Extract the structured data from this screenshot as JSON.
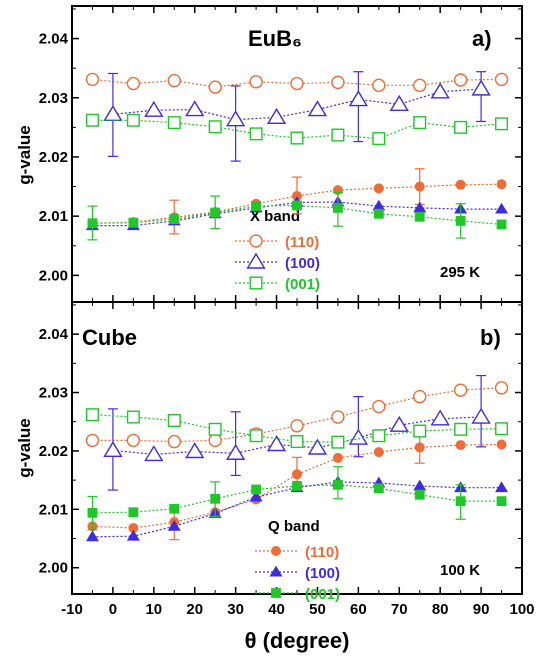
{
  "colors": {
    "s110": "#ef6c37",
    "s100": "#3f2be0",
    "s001": "#22c52a"
  },
  "xlabel": "θ (degree)",
  "ylabel": "g-value",
  "chart_data": [
    {
      "type": "line",
      "panel": "a",
      "title": "EuB₆",
      "letter": "a)",
      "temperature": "295 K",
      "legend_title": "X band",
      "marker": "open",
      "x_ticks": [
        "-10",
        "0",
        "10",
        "20",
        "30",
        "40",
        "50",
        "60",
        "70",
        "80",
        "90",
        "100"
      ],
      "y_ticks": [
        "2.00",
        "2.01",
        "2.02",
        "2.03",
        "2.04"
      ],
      "xlim": [
        -10,
        100
      ],
      "ylim": [
        1.9955,
        2.0455
      ],
      "series": [
        {
          "name": "(110)",
          "key": "s110",
          "points": [
            [
              -5,
              2.0331
            ],
            [
              5,
              2.0324
            ],
            [
              15,
              2.0329
            ],
            [
              25,
              2.0318
            ],
            [
              35,
              2.0327
            ],
            [
              45,
              2.0324
            ],
            [
              55,
              2.0326
            ],
            [
              65,
              2.0321
            ],
            [
              75,
              2.0321
            ],
            [
              85,
              2.033
            ],
            [
              95,
              2.0331
            ]
          ],
          "errors": []
        },
        {
          "name": "(100)",
          "key": "s100",
          "points": [
            [
              0,
              2.0272
            ],
            [
              10,
              2.0279
            ],
            [
              20,
              2.028
            ],
            [
              30,
              2.0263
            ],
            [
              40,
              2.0267
            ],
            [
              50,
              2.028
            ],
            [
              60,
              2.0297
            ],
            [
              70,
              2.0289
            ],
            [
              80,
              2.031
            ],
            [
              90,
              2.0315
            ]
          ],
          "errors": [
            [
              0,
              2.0201,
              2.0341
            ],
            [
              30,
              2.0193,
              2.032
            ],
            [
              60,
              2.0226,
              2.0344
            ],
            [
              90,
              2.026,
              2.0344
            ]
          ]
        },
        {
          "name": "(001)",
          "key": "s001",
          "points": [
            [
              -5,
              2.0262
            ],
            [
              5,
              2.0262
            ],
            [
              15,
              2.0258
            ],
            [
              25,
              2.0251
            ],
            [
              35,
              2.0239
            ],
            [
              45,
              2.0232
            ],
            [
              55,
              2.0237
            ],
            [
              65,
              2.0231
            ],
            [
              75,
              2.0258
            ],
            [
              85,
              2.025
            ],
            [
              95,
              2.0256
            ]
          ],
          "errors": []
        },
        {
          "name": "",
          "key": "s110",
          "filled": true,
          "points": [
            [
              -5,
              2.0088
            ],
            [
              5,
              2.009
            ],
            [
              15,
              2.0098
            ],
            [
              25,
              2.0107
            ],
            [
              35,
              2.0121
            ],
            [
              45,
              2.0134
            ],
            [
              55,
              2.0144
            ],
            [
              65,
              2.0147
            ],
            [
              75,
              2.015
            ],
            [
              85,
              2.0153
            ],
            [
              95,
              2.0154
            ]
          ],
          "errors": [
            [
              15,
              2.007,
              2.0127
            ],
            [
              45,
              2.0104,
              2.0166
            ],
            [
              75,
              2.012,
              2.018
            ]
          ]
        },
        {
          "name": "",
          "key": "s100",
          "filled": true,
          "points": [
            [
              -5,
              2.0084
            ],
            [
              5,
              2.0084
            ],
            [
              15,
              2.0092
            ],
            [
              25,
              2.0104
            ],
            [
              35,
              2.0114
            ],
            [
              45,
              2.0123
            ],
            [
              55,
              2.0124
            ],
            [
              65,
              2.0117
            ],
            [
              75,
              2.0114
            ],
            [
              85,
              2.0112
            ],
            [
              95,
              2.0112
            ]
          ],
          "errors": []
        },
        {
          "name": "",
          "key": "s001",
          "filled": true,
          "points": [
            [
              -5,
              2.0088
            ],
            [
              5,
              2.0089
            ],
            [
              15,
              2.0095
            ],
            [
              25,
              2.0106
            ],
            [
              35,
              2.0117
            ],
            [
              45,
              2.0118
            ],
            [
              55,
              2.0114
            ],
            [
              65,
              2.0104
            ],
            [
              75,
              2.0099
            ],
            [
              85,
              2.0092
            ],
            [
              95,
              2.0086
            ]
          ],
          "errors": [
            [
              -5,
              2.006,
              2.0117
            ],
            [
              25,
              2.0079,
              2.0134
            ],
            [
              55,
              2.0083,
              2.014
            ],
            [
              85,
              2.0063,
              2.0121
            ]
          ]
        }
      ]
    },
    {
      "type": "line",
      "panel": "b",
      "title": "Cube",
      "letter": "b)",
      "temperature": "100 K",
      "legend_title": "Q band",
      "marker": "filled",
      "x_ticks": [
        "-10",
        "0",
        "10",
        "20",
        "30",
        "40",
        "50",
        "60",
        "70",
        "80",
        "90",
        "100"
      ],
      "y_ticks": [
        "2.00",
        "2.01",
        "2.02",
        "2.03",
        "2.04"
      ],
      "xlim": [
        -10,
        100
      ],
      "ylim": [
        1.9955,
        2.0455
      ],
      "series": [
        {
          "name": "(110)",
          "key": "s110",
          "filled": true,
          "points": [
            [
              -5,
              2.0071
            ],
            [
              5,
              2.0068
            ],
            [
              15,
              2.0078
            ],
            [
              25,
              2.0095
            ],
            [
              35,
              2.0117
            ],
            [
              45,
              2.016
            ],
            [
              55,
              2.0188
            ],
            [
              65,
              2.0198
            ],
            [
              75,
              2.0206
            ],
            [
              85,
              2.021
            ],
            [
              95,
              2.0211
            ]
          ],
          "errors": [
            [
              15,
              2.0048,
              2.0106
            ],
            [
              45,
              2.0133,
              2.0189
            ],
            [
              75,
              2.0179,
              2.0234
            ]
          ]
        },
        {
          "name": "(100)",
          "key": "s100",
          "filled": true,
          "points": [
            [
              -5,
              2.0053
            ],
            [
              5,
              2.0054
            ],
            [
              15,
              2.0071
            ],
            [
              25,
              2.0093
            ],
            [
              35,
              2.0121
            ],
            [
              45,
              2.0137
            ],
            [
              55,
              2.0147
            ],
            [
              65,
              2.0145
            ],
            [
              75,
              2.014
            ],
            [
              85,
              2.0137
            ],
            [
              95,
              2.0137
            ]
          ],
          "errors": []
        },
        {
          "name": "(001)",
          "key": "s001",
          "filled": true,
          "points": [
            [
              -5,
              2.0094
            ],
            [
              5,
              2.0095
            ],
            [
              15,
              2.0101
            ],
            [
              25,
              2.0118
            ],
            [
              35,
              2.0134
            ],
            [
              45,
              2.014
            ],
            [
              55,
              2.0142
            ],
            [
              65,
              2.0136
            ],
            [
              75,
              2.0125
            ],
            [
              85,
              2.0114
            ],
            [
              95,
              2.0114
            ]
          ],
          "errors": [
            [
              -5,
              2.0065,
              2.0122
            ],
            [
              25,
              2.0088,
              2.0147
            ],
            [
              55,
              2.0118,
              2.0173
            ],
            [
              85,
              2.0083,
              2.0142
            ]
          ]
        },
        {
          "name": "",
          "key": "s110",
          "filled": false,
          "points": [
            [
              -5,
              2.0218
            ],
            [
              5,
              2.0218
            ],
            [
              15,
              2.0216
            ],
            [
              25,
              2.0218
            ],
            [
              35,
              2.0229
            ],
            [
              45,
              2.0243
            ],
            [
              55,
              2.0258
            ],
            [
              65,
              2.0276
            ],
            [
              75,
              2.0293
            ],
            [
              85,
              2.0304
            ],
            [
              95,
              2.0308
            ]
          ],
          "errors": []
        },
        {
          "name": "",
          "key": "s100",
          "filled": false,
          "points": [
            [
              0,
              2.0201
            ],
            [
              10,
              2.0194
            ],
            [
              20,
              2.0199
            ],
            [
              30,
              2.0196
            ],
            [
              40,
              2.0211
            ],
            [
              50,
              2.0205
            ],
            [
              60,
              2.0222
            ],
            [
              70,
              2.0244
            ],
            [
              80,
              2.0255
            ],
            [
              90,
              2.0258
            ]
          ],
          "errors": [
            [
              0,
              2.0133,
              2.0272
            ],
            [
              30,
              2.0158,
              2.0267
            ],
            [
              60,
              2.019,
              2.0293
            ],
            [
              90,
              2.0207,
              2.0329
            ]
          ]
        },
        {
          "name": "",
          "key": "s001",
          "filled": false,
          "points": [
            [
              -5,
              2.0262
            ],
            [
              5,
              2.0258
            ],
            [
              15,
              2.0252
            ],
            [
              25,
              2.0237
            ],
            [
              35,
              2.0226
            ],
            [
              45,
              2.0216
            ],
            [
              55,
              2.0215
            ],
            [
              65,
              2.0226
            ],
            [
              75,
              2.0234
            ],
            [
              85,
              2.0237
            ],
            [
              95,
              2.0238
            ]
          ],
          "errors": []
        }
      ]
    }
  ]
}
